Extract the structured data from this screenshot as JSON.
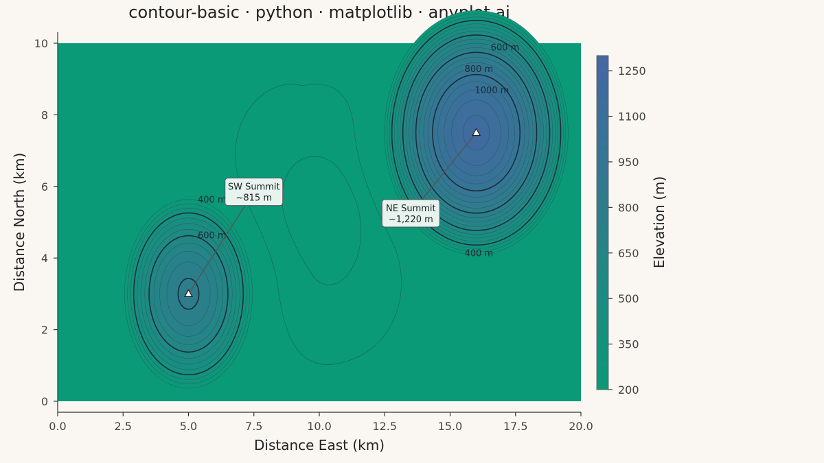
{
  "chart_data": {
    "type": "contour",
    "title": "contour-basic · python · matplotlib · anyplot.ai",
    "xlabel": "Distance East (km)",
    "ylabel": "Distance North (km)",
    "xlim": [
      0,
      20
    ],
    "ylim": [
      0,
      10
    ],
    "x_ticks": [
      0,
      2.5,
      5,
      7.5,
      10,
      12.5,
      15,
      17.5,
      20
    ],
    "x_tick_labels": [
      "0.0",
      "2.5",
      "5.0",
      "7.5",
      "10.0",
      "12.5",
      "15.0",
      "17.5",
      "20.0"
    ],
    "y_ticks": [
      0,
      2,
      4,
      6,
      8,
      10
    ],
    "y_tick_labels": [
      "0",
      "2",
      "4",
      "6",
      "8",
      "10"
    ],
    "grid": false,
    "colorbar": {
      "label": "Elevation (m)",
      "range": [
        200,
        1300
      ],
      "ticks": [
        200,
        350,
        500,
        650,
        800,
        950,
        1100,
        1250
      ],
      "tick_labels": [
        "200",
        "350",
        "500",
        "650",
        "800",
        "950",
        "1100",
        "1250"
      ],
      "colors": {
        "low": "#0a9a78",
        "mid": "#2b7f8a",
        "high": "#4467a3"
      }
    },
    "contour_line_levels": [
      400,
      600,
      800,
      1000
    ],
    "contour_labels": [
      {
        "text": "400 m",
        "x": 5.9,
        "y": 5.55
      },
      {
        "text": "600 m",
        "x": 5.9,
        "y": 4.55
      },
      {
        "text": "600 m",
        "x": 17.1,
        "y": 9.8
      },
      {
        "text": "800 m",
        "x": 16.1,
        "y": 9.2
      },
      {
        "text": "1000 m",
        "x": 16.6,
        "y": 8.6
      },
      {
        "text": "400 m",
        "x": 16.1,
        "y": 4.05
      }
    ],
    "peaks": [
      {
        "name": "SW Summit",
        "label": "SW Summit",
        "elevation_label": "~815 m",
        "x": 5.0,
        "y": 3.0,
        "box_x": 7.5,
        "box_y": 5.85
      },
      {
        "name": "NE Summit",
        "label": "NE Summit",
        "elevation_label": "~1,220 m",
        "x": 16.0,
        "y": 7.5,
        "box_x": 13.5,
        "box_y": 5.25
      }
    ]
  }
}
